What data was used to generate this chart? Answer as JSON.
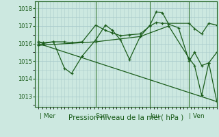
{
  "background_color": "#cce8e0",
  "grid_color": "#aacccc",
  "line_color": "#1a5c1a",
  "marker_color": "#1a5c1a",
  "xlabel_text": "Pression niveau de la mer( hPa )",
  "xtick_labels": [
    "| Mer",
    "Sam",
    "Jeu",
    "| Ven"
  ],
  "xtick_positions": [
    0.0,
    0.32,
    0.625,
    0.845
  ],
  "yticks": [
    1013,
    1014,
    1015,
    1016,
    1017,
    1018
  ],
  "ylim": [
    1012.4,
    1018.4
  ],
  "xlim": [
    -0.02,
    1.0
  ],
  "series1_x": [
    0.0,
    0.025,
    0.083,
    0.145,
    0.185,
    0.245,
    0.32,
    0.375,
    0.415,
    0.46,
    0.51,
    0.57,
    0.625,
    0.66,
    0.695,
    0.73,
    0.785,
    0.845,
    0.875,
    0.915,
    0.955,
    1.0
  ],
  "series1_y": [
    1016.1,
    1016.0,
    1016.1,
    1014.6,
    1014.3,
    1015.3,
    1016.2,
    1017.05,
    1016.75,
    1016.2,
    1015.1,
    1016.4,
    1017.05,
    1017.8,
    1017.75,
    1017.1,
    1016.9,
    1015.0,
    1015.5,
    1014.75,
    1014.9,
    1015.5
  ],
  "series2_x": [
    0.0,
    0.025,
    0.083,
    0.145,
    0.185,
    0.245,
    0.32,
    0.375,
    0.415,
    0.46,
    0.51,
    0.57,
    0.625,
    0.66,
    0.695,
    0.845,
    0.875,
    0.915,
    0.955,
    1.0
  ],
  "series2_y": [
    1016.1,
    1016.05,
    1016.1,
    1016.1,
    1016.05,
    1016.1,
    1017.05,
    1016.75,
    1016.6,
    1016.45,
    1016.5,
    1016.55,
    1017.0,
    1017.2,
    1017.15,
    1017.15,
    1016.85,
    1016.55,
    1017.15,
    1017.05
  ],
  "series3_x": [
    0.0,
    1.0
  ],
  "series3_y": [
    1016.0,
    1012.7
  ],
  "series4_x": [
    0.0,
    0.32,
    0.57,
    0.73,
    0.845,
    0.875,
    0.915,
    0.955,
    1.0
  ],
  "series4_y": [
    1015.9,
    1016.1,
    1016.4,
    1017.0,
    1015.15,
    1014.75,
    1013.05,
    1014.9,
    1012.7
  ],
  "vlines_x": [
    0.0,
    0.32,
    0.625,
    0.845
  ],
  "vlines_color": "#3a7a3a"
}
